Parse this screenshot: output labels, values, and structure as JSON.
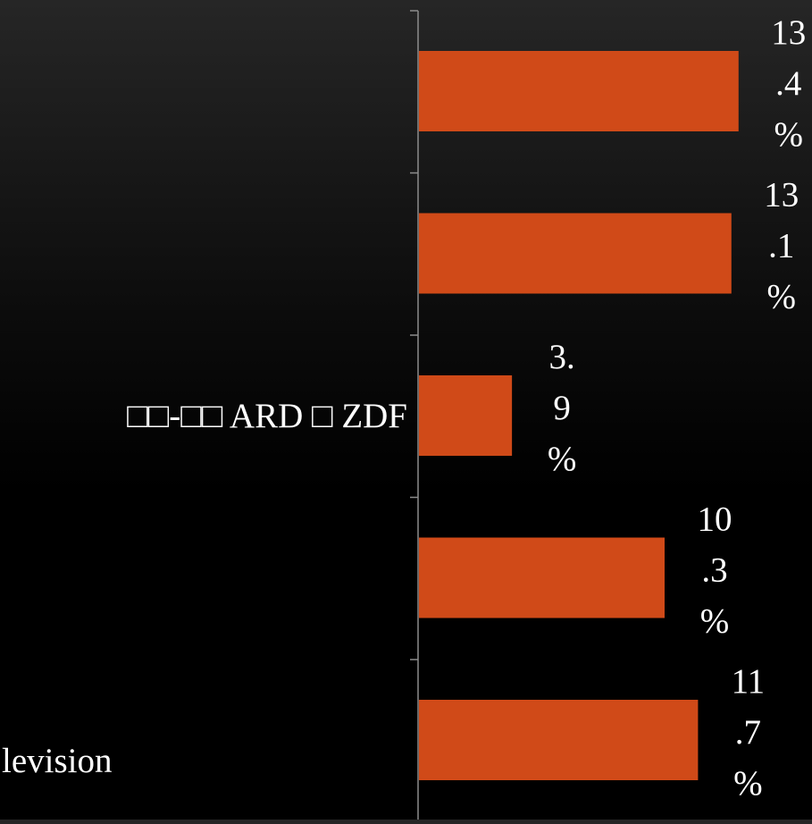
{
  "chart_data": {
    "type": "bar",
    "orientation": "horizontal",
    "categories": [
      "",
      "",
      "□□-□□ ARD □ ZDF",
      "",
      "levision"
    ],
    "values": [
      13.4,
      13.1,
      3.9,
      10.3,
      11.7
    ],
    "data_labels": [
      [
        "13",
        ".4",
        "%"
      ],
      [
        "13",
        ".1",
        "%"
      ],
      [
        "3.",
        "9",
        "%"
      ],
      [
        "10",
        ".3",
        "%"
      ],
      [
        "11",
        ".7",
        "%"
      ]
    ],
    "value_unit": "%",
    "xlim": [
      0,
      15
    ],
    "title": "",
    "xlabel": "",
    "ylabel": "",
    "grid": false,
    "legend": "none",
    "colors": {
      "bar": "#D04A18",
      "axis": "#8c8c8c",
      "text": "#ffffff"
    }
  }
}
